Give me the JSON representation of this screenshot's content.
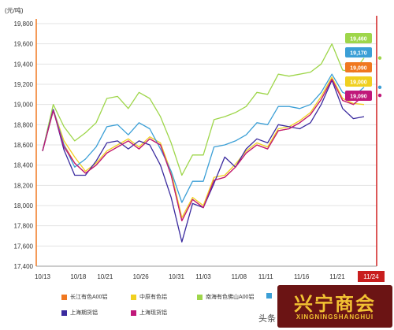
{
  "chart_data": {
    "type": "line",
    "unit_label": "(元/吨)",
    "y_ticks": [
      "19,800",
      "19,600",
      "19,400",
      "19,200",
      "19,000",
      "18,800",
      "18,600",
      "18,400",
      "18,200",
      "18,000",
      "17,800",
      "17,600",
      "17,400"
    ],
    "x_ticks": [
      "10/13",
      "10/18",
      "10/21",
      "10/26",
      "10/31",
      "11/03",
      "11/08",
      "11/11",
      "11/16",
      "11/21",
      "11/24"
    ],
    "ylim": [
      17400,
      19800
    ],
    "grid": true,
    "end_labels": [
      "19,460",
      "19,170",
      "19,090",
      "19,000",
      "19,090"
    ],
    "series": [
      {
        "name": "长江有色A00铝",
        "color": "#f07820",
        "values": [
          18540,
          18940,
          18600,
          18420,
          18320,
          18400,
          18520,
          18580,
          18640,
          18560,
          18660,
          18600,
          18300,
          17850,
          18060,
          17980,
          18250,
          18280,
          18380,
          18520,
          18600,
          18560,
          18740,
          18760,
          18820,
          18900,
          19050,
          19250,
          19040,
          19000,
          19090
        ]
      },
      {
        "name": "中原有色铝",
        "color": "#f0d020",
        "values": [
          18540,
          18950,
          18640,
          18480,
          18340,
          18420,
          18540,
          18600,
          18660,
          18580,
          18680,
          18620,
          18330,
          17880,
          18080,
          18000,
          18280,
          18300,
          18410,
          18540,
          18620,
          18580,
          18760,
          18780,
          18840,
          18920,
          19080,
          19270,
          19060,
          19010,
          19000
        ]
      },
      {
        "name": "南海有色佛山A00铝",
        "color": "#9ed64a",
        "values": [
          18540,
          19000,
          18780,
          18640,
          18720,
          18820,
          19060,
          19080,
          18960,
          19120,
          19060,
          18880,
          18620,
          18300,
          18500,
          18500,
          18850,
          18880,
          18920,
          18980,
          19120,
          19100,
          19300,
          19280,
          19300,
          19320,
          19400,
          19600,
          19340,
          19320,
          19460
        ]
      },
      {
        "name": "",
        "color": "#3b9fd6",
        "values": [
          18540,
          18950,
          18600,
          18380,
          18460,
          18580,
          18780,
          18800,
          18700,
          18820,
          18760,
          18560,
          18340,
          18030,
          18240,
          18240,
          18580,
          18600,
          18640,
          18700,
          18820,
          18800,
          18980,
          18980,
          18960,
          19000,
          19120,
          19300,
          19120,
          19080,
          19170
        ]
      },
      {
        "name": "上海期货铝",
        "color": "#3a2a9e",
        "values": [
          18540,
          18950,
          18550,
          18300,
          18300,
          18440,
          18620,
          18640,
          18560,
          18640,
          18600,
          18400,
          18080,
          17640,
          18020,
          17980,
          18220,
          18480,
          18380,
          18560,
          18660,
          18620,
          18800,
          18780,
          18760,
          18820,
          19000,
          19240,
          18960,
          18860,
          18880
        ]
      },
      {
        "name": "上海现货铝",
        "color": "#c0187a",
        "values": [
          18540,
          18940,
          18580,
          18420,
          18320,
          18400,
          18520,
          18580,
          18640,
          18560,
          18660,
          18600,
          18300,
          17850,
          18060,
          17980,
          18250,
          18280,
          18380,
          18520,
          18600,
          18560,
          18740,
          18760,
          18820,
          18900,
          19050,
          19250,
          19040,
          19000,
          19090
        ]
      }
    ],
    "end_label_colors": [
      "#9ed64a",
      "#3b9fd6",
      "#f07820",
      "#f0d020",
      "#c0187a"
    ]
  },
  "legend_items": [
    {
      "label": "长江有色A00铝",
      "color": "#f07820"
    },
    {
      "label": "中原有色铝",
      "color": "#f0d020"
    },
    {
      "label": "南海有色佛山A00铝",
      "color": "#9ed64a"
    },
    {
      "label": "",
      "color": "#3b9fd6"
    },
    {
      "label": "上海期货铝",
      "color": "#3a2a9e"
    },
    {
      "label": "上海现货铝",
      "color": "#c0187a"
    }
  ],
  "watermark": "头条",
  "logo": {
    "main": "兴宁商会",
    "sub": "XINGNINGSHANGHUI"
  }
}
